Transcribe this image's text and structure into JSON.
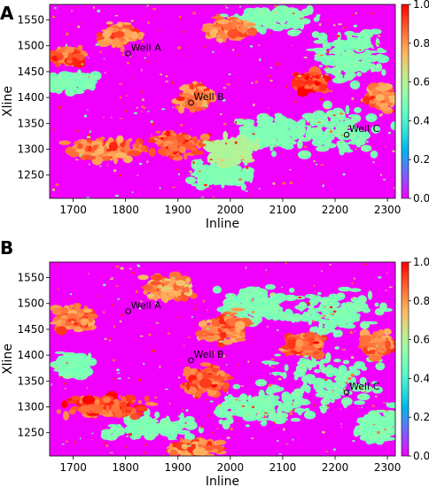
{
  "chart_data": [
    {
      "type": "heatmap",
      "panel": "A",
      "xlabel": "Inline",
      "ylabel": "Xline",
      "xlim": [
        1655,
        2315
      ],
      "ylim": [
        1205,
        1580
      ],
      "xticks": [
        1700,
        1800,
        1900,
        2000,
        2100,
        2200,
        2300
      ],
      "yticks": [
        1250,
        1300,
        1350,
        1400,
        1450,
        1500,
        1550
      ],
      "colorbar": {
        "colormap": "rainbow",
        "range": [
          0.0,
          1.0
        ],
        "ticks": [
          "0.0",
          "0.2",
          "0.4",
          "0.6",
          "0.8",
          "1.0"
        ]
      },
      "wells": [
        {
          "name": "Well A",
          "inline": 1805,
          "xline": 1485
        },
        {
          "name": "Well B",
          "inline": 1925,
          "xline": 1390
        },
        {
          "name": "Well C",
          "inline": 2222,
          "xline": 1328
        }
      ],
      "regions": [
        {
          "inline": 2200,
          "xline": 1340,
          "value": 0.5,
          "spread": [
            130,
            60
          ]
        },
        {
          "inline": 2080,
          "xline": 1330,
          "value": 0.5,
          "spread": [
            90,
            45
          ]
        },
        {
          "inline": 2230,
          "xline": 1480,
          "value": 0.5,
          "spread": [
            90,
            70
          ]
        },
        {
          "inline": 2080,
          "xline": 1550,
          "value": 0.5,
          "spread": [
            120,
            30
          ]
        },
        {
          "inline": 1980,
          "xline": 1250,
          "value": 0.5,
          "spread": [
            80,
            30
          ]
        },
        {
          "inline": 1700,
          "xline": 1430,
          "value": 0.5,
          "spread": [
            60,
            25
          ]
        },
        {
          "inline": 2150,
          "xline": 1430,
          "value": 0.9,
          "spread": [
            40,
            25
          ]
        },
        {
          "inline": 1900,
          "xline": 1310,
          "value": 0.85,
          "spread": [
            80,
            35
          ]
        },
        {
          "inline": 1760,
          "xline": 1300,
          "value": 0.8,
          "spread": [
            100,
            30
          ]
        },
        {
          "inline": 1690,
          "xline": 1480,
          "value": 0.85,
          "spread": [
            40,
            20
          ]
        },
        {
          "inline": 1790,
          "xline": 1520,
          "value": 0.8,
          "spread": [
            50,
            30
          ]
        },
        {
          "inline": 2000,
          "xline": 1530,
          "value": 0.8,
          "spread": [
            60,
            30
          ]
        },
        {
          "inline": 2290,
          "xline": 1400,
          "value": 0.8,
          "spread": [
            40,
            30
          ]
        },
        {
          "inline": 1930,
          "xline": 1400,
          "value": 0.8,
          "spread": [
            40,
            30
          ]
        },
        {
          "inline": 2000,
          "xline": 1300,
          "value": 0.6,
          "spread": [
            60,
            40
          ]
        }
      ]
    },
    {
      "type": "heatmap",
      "panel": "B",
      "xlabel": "Inline",
      "ylabel": "Xline",
      "xlim": [
        1655,
        2315
      ],
      "ylim": [
        1205,
        1580
      ],
      "xticks": [
        1700,
        1800,
        1900,
        2000,
        2100,
        2200,
        2300
      ],
      "yticks": [
        1250,
        1300,
        1350,
        1400,
        1450,
        1500,
        1550
      ],
      "colorbar": {
        "colormap": "rainbow",
        "range": [
          0.0,
          1.0
        ],
        "ticks": [
          "0.0",
          "0.2",
          "0.4",
          "0.6",
          "0.8",
          "1.0"
        ]
      },
      "wells": [
        {
          "name": "Well A",
          "inline": 1805,
          "xline": 1485
        },
        {
          "name": "Well B",
          "inline": 1925,
          "xline": 1390
        },
        {
          "name": "Well C",
          "inline": 2222,
          "xline": 1328
        }
      ],
      "regions": [
        {
          "inline": 2180,
          "xline": 1350,
          "value": 0.5,
          "spread": [
            150,
            80
          ]
        },
        {
          "inline": 2050,
          "xline": 1300,
          "value": 0.5,
          "spread": [
            120,
            50
          ]
        },
        {
          "inline": 2200,
          "xline": 1480,
          "value": 0.5,
          "spread": [
            110,
            60
          ]
        },
        {
          "inline": 2050,
          "xline": 1500,
          "value": 0.5,
          "spread": [
            90,
            50
          ]
        },
        {
          "inline": 1850,
          "xline": 1260,
          "value": 0.5,
          "spread": [
            110,
            30
          ]
        },
        {
          "inline": 1700,
          "xline": 1380,
          "value": 0.5,
          "spread": [
            50,
            30
          ]
        },
        {
          "inline": 2280,
          "xline": 1260,
          "value": 0.5,
          "spread": [
            50,
            40
          ]
        },
        {
          "inline": 1760,
          "xline": 1300,
          "value": 0.85,
          "spread": [
            110,
            30
          ]
        },
        {
          "inline": 1950,
          "xline": 1350,
          "value": 0.85,
          "spread": [
            60,
            40
          ]
        },
        {
          "inline": 1990,
          "xline": 1450,
          "value": 0.8,
          "spread": [
            60,
            40
          ]
        },
        {
          "inline": 2140,
          "xline": 1420,
          "value": 0.85,
          "spread": [
            50,
            30
          ]
        },
        {
          "inline": 1700,
          "xline": 1470,
          "value": 0.8,
          "spread": [
            50,
            30
          ]
        },
        {
          "inline": 1880,
          "xline": 1530,
          "value": 0.75,
          "spread": [
            60,
            30
          ]
        },
        {
          "inline": 2280,
          "xline": 1420,
          "value": 0.8,
          "spread": [
            40,
            30
          ]
        },
        {
          "inline": 1930,
          "xline": 1220,
          "value": 0.8,
          "spread": [
            60,
            20
          ]
        }
      ]
    }
  ]
}
